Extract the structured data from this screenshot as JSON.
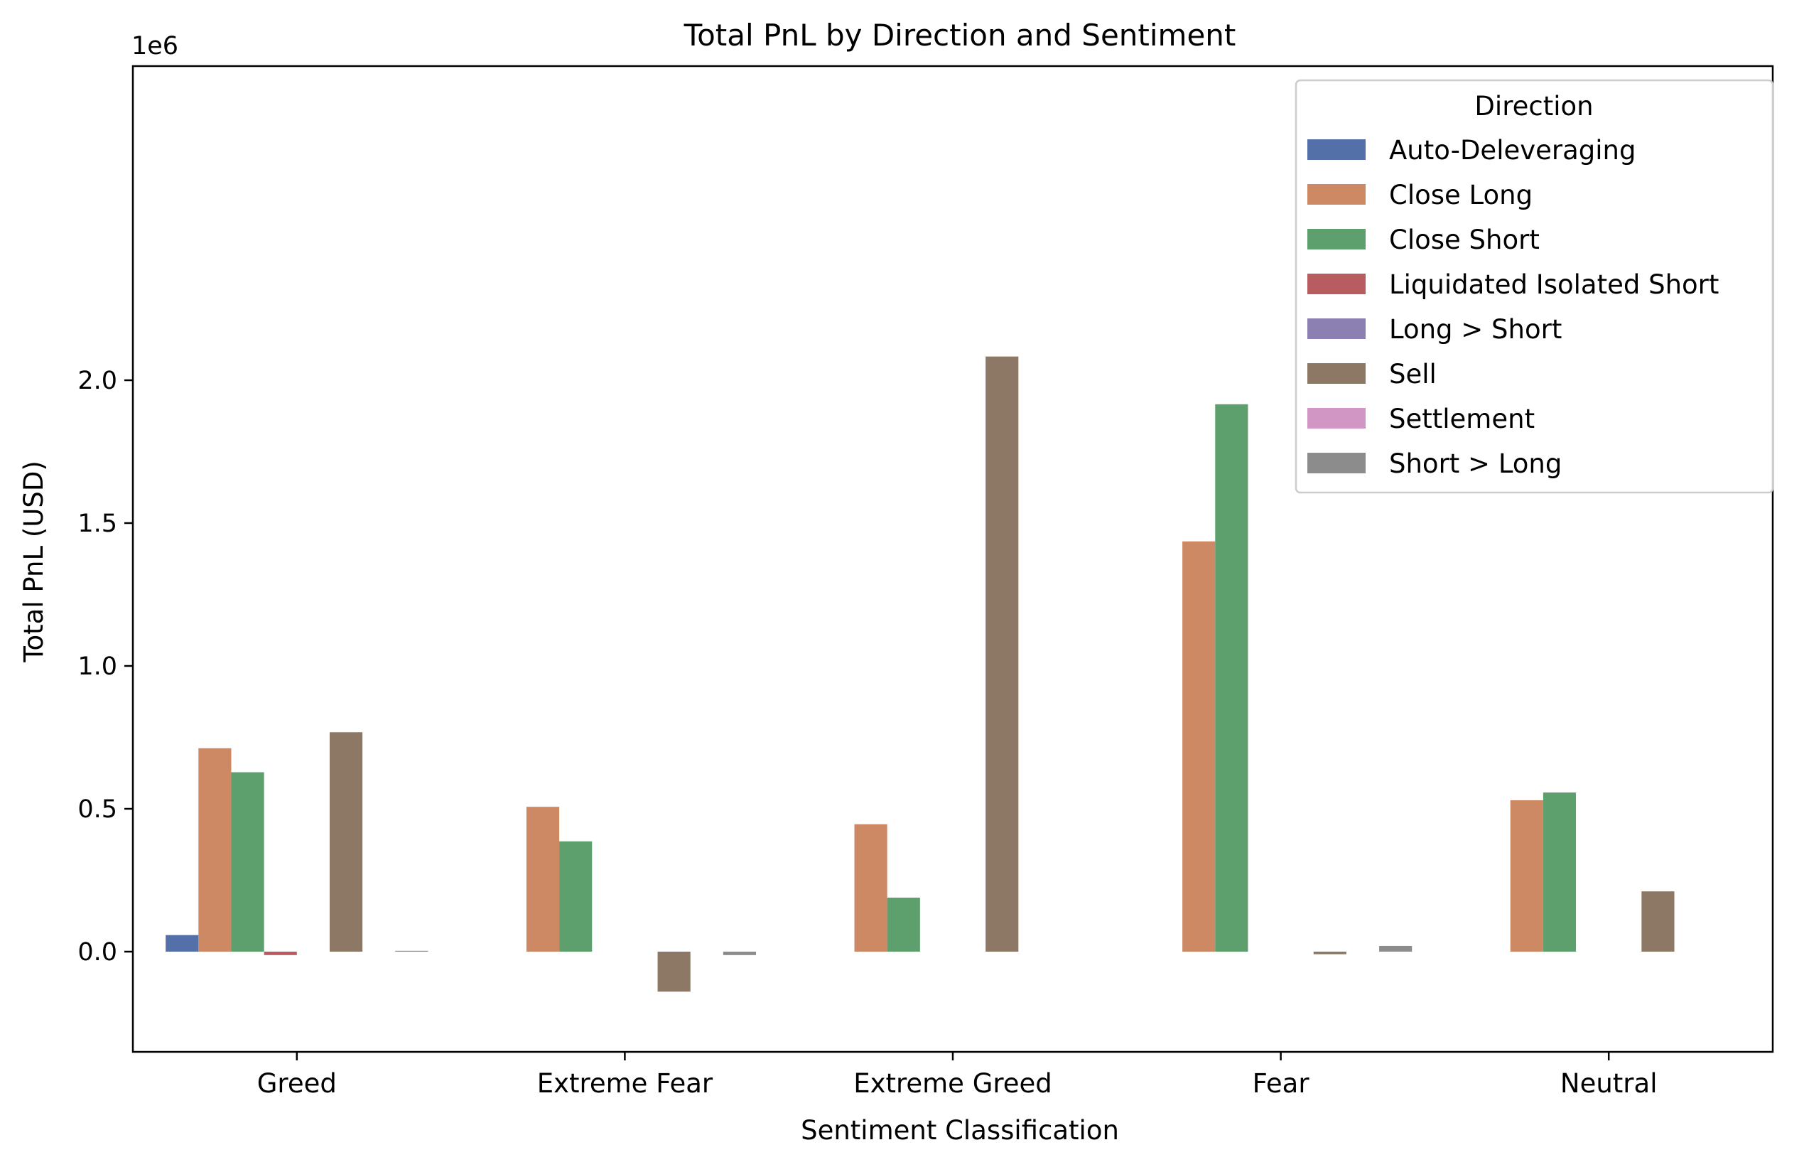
{
  "chart_data": {
    "type": "bar",
    "title": "Total PnL by Direction and Sentiment",
    "xlabel": "Sentiment Classification",
    "ylabel": "Total PnL (USD)",
    "y_offset_label": "1e6",
    "ylim": [
      -250000,
      2200000
    ],
    "yticks": [
      0,
      500000,
      1000000,
      1500000,
      2000000
    ],
    "ytick_labels": [
      "0.0",
      "0.5",
      "1.0",
      "1.5",
      "2.0"
    ],
    "grid": false,
    "legend_title": "Direction",
    "legend_position": "top-right",
    "categories": [
      "Greed",
      "Extreme Fear",
      "Extreme Greed",
      "Fear",
      "Neutral"
    ],
    "series": [
      {
        "name": "Auto-Deleveraging",
        "color": "#5470a8",
        "values": [
          58000,
          0,
          0,
          0,
          0
        ]
      },
      {
        "name": "Close Long",
        "color": "#cc8964",
        "values": [
          712000,
          507000,
          446000,
          1436000,
          530000
        ]
      },
      {
        "name": "Close Short",
        "color": "#5e9f6e",
        "values": [
          628000,
          386000,
          189000,
          1916000,
          557000
        ]
      },
      {
        "name": "Liquidated Isolated Short",
        "color": "#b95c5f",
        "values": [
          -12000,
          0,
          0,
          0,
          0
        ]
      },
      {
        "name": "Long > Short",
        "color": "#8c7fb1",
        "values": [
          0,
          0,
          0,
          0,
          0
        ]
      },
      {
        "name": "Sell",
        "color": "#8c7864",
        "values": [
          768000,
          -140000,
          2083000,
          -9000,
          211000
        ]
      },
      {
        "name": "Settlement",
        "color": "#d196c3",
        "values": [
          0,
          0,
          0,
          0,
          0
        ]
      },
      {
        "name": "Short > Long",
        "color": "#8c8c8c",
        "values": [
          3000,
          -12000,
          0,
          20000,
          0
        ]
      }
    ]
  }
}
